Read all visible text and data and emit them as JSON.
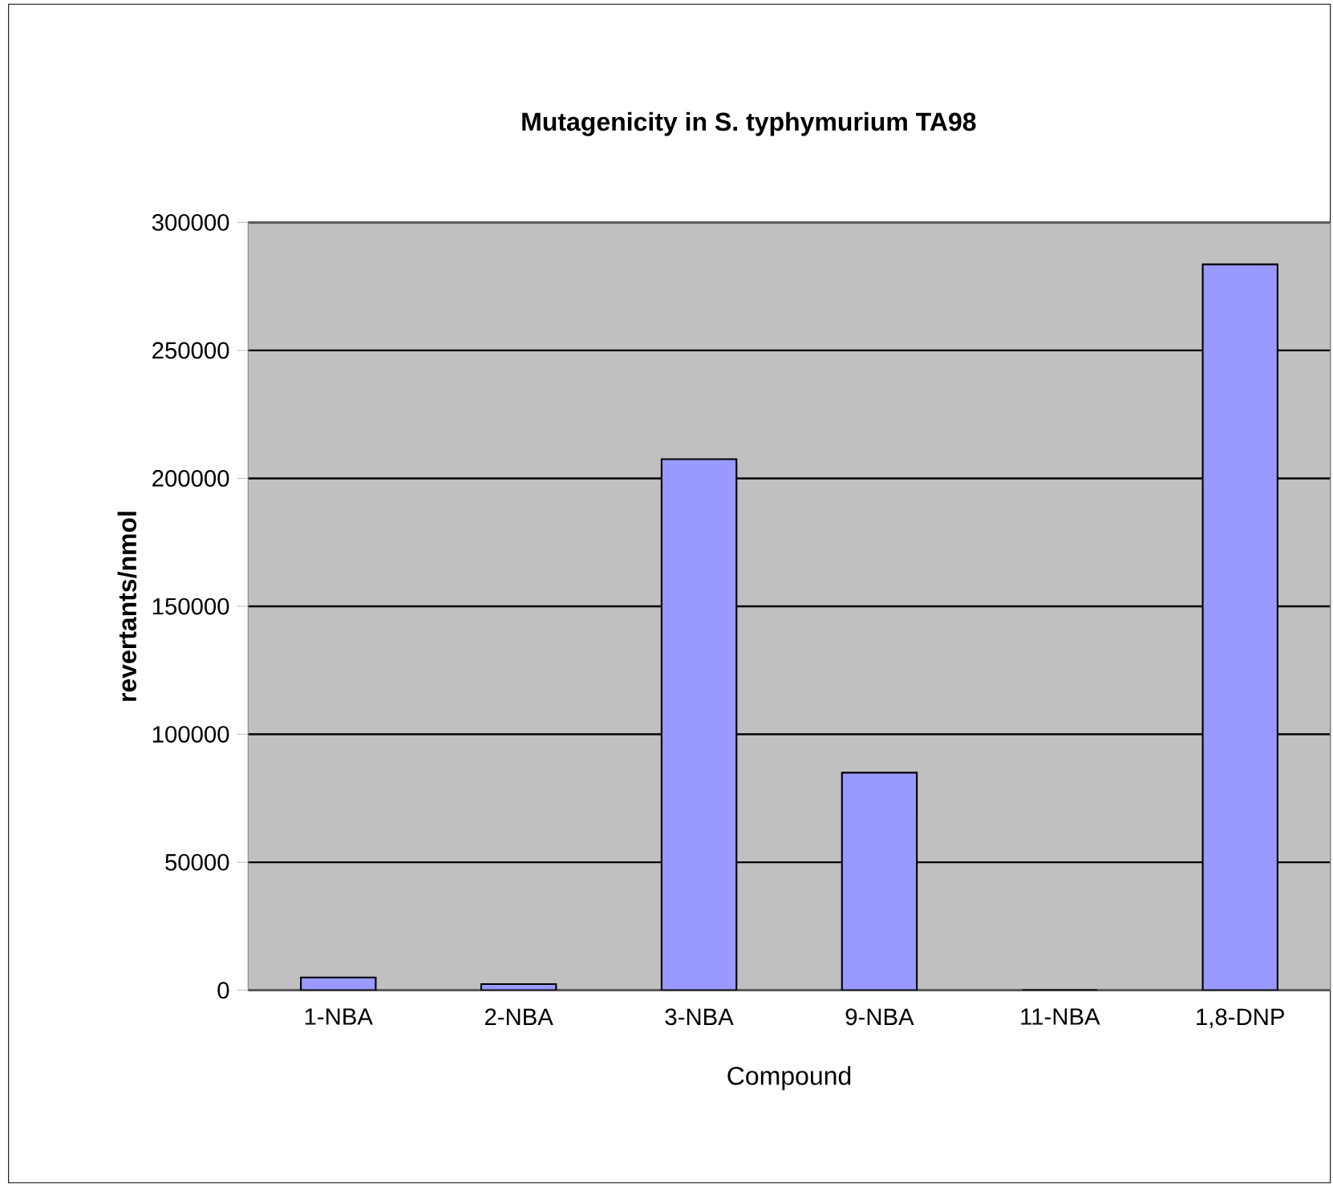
{
  "chart_data": {
    "type": "bar",
    "title": "Mutagenicity in S. typhymurium TA98",
    "xlabel": "Compound",
    "ylabel": "revertants/nmol",
    "categories": [
      "1-NBA",
      "2-NBA",
      "3-NBA",
      "9-NBA",
      "11-NBA",
      "1,8-DNP"
    ],
    "values": [
      5000,
      2400,
      207500,
      85000,
      0,
      283600
    ],
    "color": "#9999ff",
    "ylim": [
      0,
      300000
    ],
    "yticks": [
      0,
      50000,
      100000,
      150000,
      200000,
      250000,
      300000
    ],
    "grid": "y"
  }
}
